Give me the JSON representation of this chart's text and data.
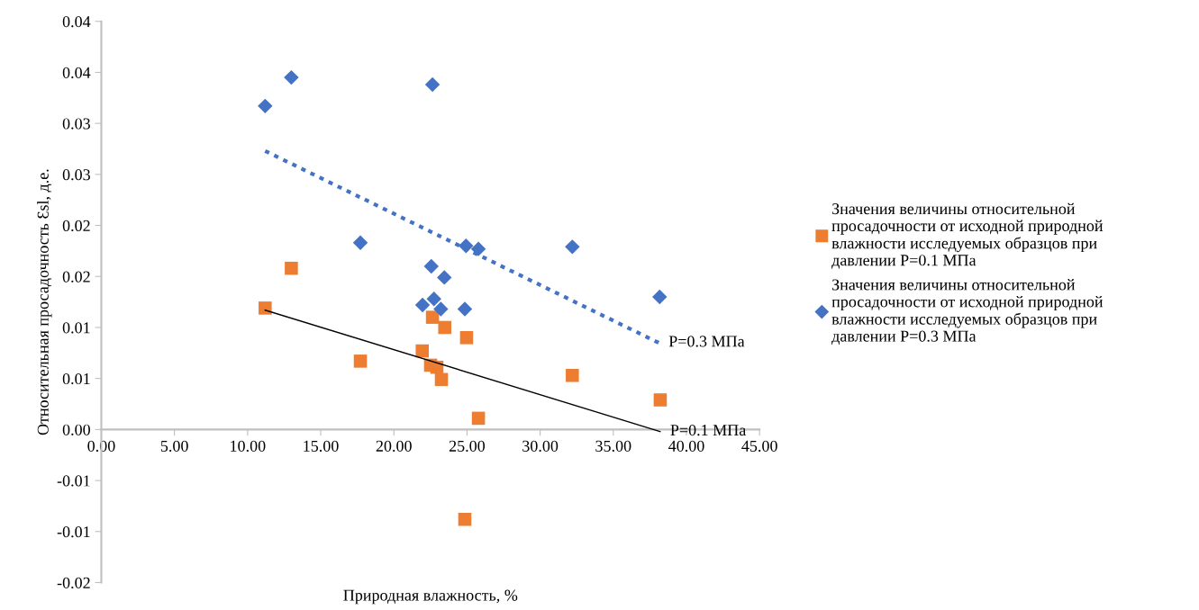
{
  "chart_data": {
    "type": "scatter",
    "xlabel": "Природная влажность, %",
    "ylabel": "Относительная просадочность Ɛsl, д.е.",
    "xlim": [
      0,
      45
    ],
    "xticks": [
      {
        "value": 0,
        "label": "0.00"
      },
      {
        "value": 5,
        "label": "5.00"
      },
      {
        "value": 10,
        "label": "10.00"
      },
      {
        "value": 15,
        "label": "15.00"
      },
      {
        "value": 20,
        "label": "20.00"
      },
      {
        "value": 25,
        "label": "25.00"
      },
      {
        "value": 30,
        "label": "30.00"
      },
      {
        "value": 35,
        "label": "35.00"
      },
      {
        "value": 40,
        "label": "40.00"
      },
      {
        "value": 45,
        "label": "45.00"
      }
    ],
    "ylim": [
      -0.015,
      0.04
    ],
    "yticks": [
      {
        "value": -0.015,
        "label": "-0.02"
      },
      {
        "value": -0.01,
        "label": "-0.01"
      },
      {
        "value": -0.005,
        "label": "-0.01"
      },
      {
        "value": 0,
        "label": "0.00"
      },
      {
        "value": 0.005,
        "label": "0.01"
      },
      {
        "value": 0.01,
        "label": "0.01"
      },
      {
        "value": 0.015,
        "label": "0.02"
      },
      {
        "value": 0.02,
        "label": "0.02"
      },
      {
        "value": 0.025,
        "label": "0.03"
      },
      {
        "value": 0.03,
        "label": "0.03"
      },
      {
        "value": 0.035,
        "label": "0.04"
      },
      {
        "value": 0.04,
        "label": "0.04"
      }
    ],
    "grid": false,
    "legend": "right",
    "series": [
      {
        "name": "Значения величины относительной просадочности от исходной природной влажности исследуемых образцов при давлении P=0.1 МПа",
        "color": "#ed7d31",
        "marker": "square",
        "x": [
          12.99,
          11.2,
          17.71,
          21.94,
          22.64,
          23.48,
          24.97,
          22.51,
          22.94,
          23.25,
          25.78,
          24.85,
          32.2,
          38.21
        ],
        "values": [
          0.0158,
          0.0119,
          0.0067,
          0.0077,
          0.011,
          0.01,
          0.009,
          0.0063,
          0.0061,
          0.0049,
          0.0011,
          -0.0088,
          0.0053,
          0.0029
        ]
      },
      {
        "name": "Значения величины относительной просадочности от исходной природной влажности исследуемых образцов при давлении P=0.3 МПа",
        "color": "#4472c4",
        "marker": "diamond",
        "x": [
          12.99,
          11.2,
          22.64,
          17.71,
          24.93,
          25.78,
          22.56,
          23.45,
          21.96,
          22.74,
          23.21,
          24.85,
          32.2,
          38.17
        ],
        "values": [
          0.0345,
          0.0317,
          0.0338,
          0.0183,
          0.018,
          0.0177,
          0.016,
          0.0149,
          0.0122,
          0.0128,
          0.0118,
          0.0118,
          0.0179,
          0.013
        ]
      },
      {
        "type": "line",
        "color": "#4472c4",
        "line_style": "dotted",
        "x": [
          11.2,
          38.1
        ],
        "values": [
          0.0273,
          0.0085
        ]
      },
      {
        "type": "line",
        "color": "#000000",
        "line_style": "solid",
        "x": [
          11.2,
          38.2
        ],
        "values": [
          0.0117,
          -0.0002
        ]
      }
    ],
    "annotations": [
      {
        "text": "P=0.3 МПа",
        "x": 38.1,
        "y": 0.0085
      },
      {
        "text": "P=0.1 МПа",
        "x": 38.2,
        "y": -0.0002
      }
    ]
  }
}
